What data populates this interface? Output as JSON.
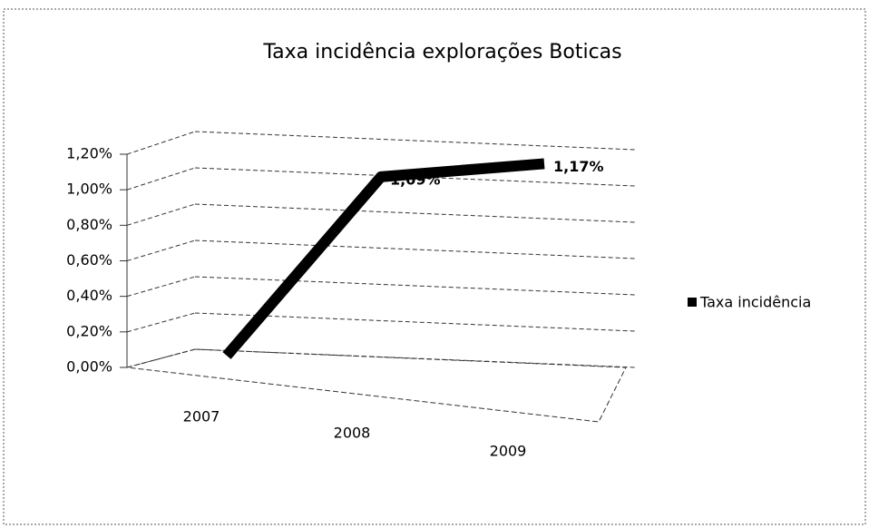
{
  "chart_data": {
    "type": "line",
    "title": "Taxa incidência explorações Boticas",
    "categories": [
      "2007",
      "2008",
      "2009"
    ],
    "series": [
      {
        "name": "Taxa incidência",
        "color": "#000000",
        "values": [
          0,
          1.09,
          1.17
        ],
        "value_labels": [
          null,
          "1,09%",
          "1,17%"
        ]
      }
    ],
    "ylim": [
      0,
      1.2
    ],
    "yticks": [
      {
        "value": 0,
        "label": "0,00%"
      },
      {
        "value": 0.2,
        "label": "0,20%"
      },
      {
        "value": 0.4,
        "label": "0,40%"
      },
      {
        "value": 0.6,
        "label": "0,60%"
      },
      {
        "value": 0.8,
        "label": "0,80%"
      },
      {
        "value": 1.0,
        "label": "1,00%"
      },
      {
        "value": 1.2,
        "label": "1,20%"
      }
    ],
    "grid": true,
    "legend": "right"
  }
}
